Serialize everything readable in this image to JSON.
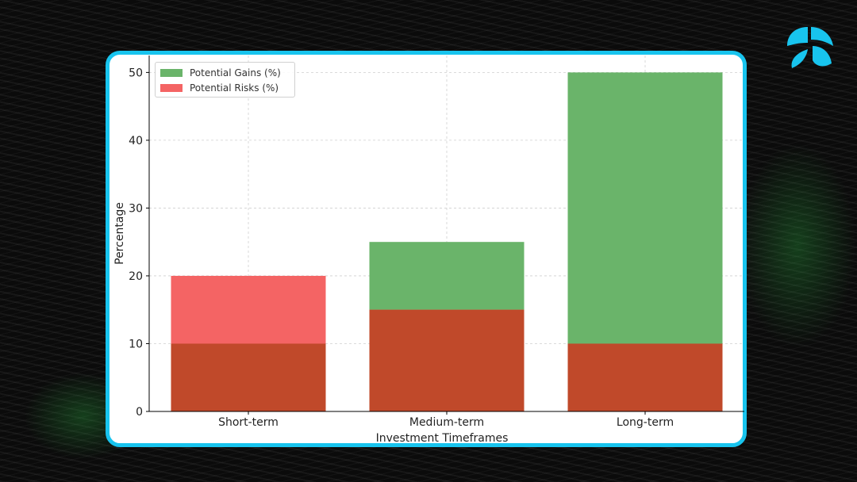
{
  "chart_data": {
    "type": "bar",
    "overlay": true,
    "categories": [
      "Short-term",
      "Medium-term",
      "Long-term"
    ],
    "series": [
      {
        "name": "Potential Gains (%)",
        "values": [
          10,
          25,
          50
        ],
        "color": "#6ab46a"
      },
      {
        "name": "Potential Risks (%)",
        "values": [
          20,
          15,
          10
        ],
        "color": "#f46464"
      }
    ],
    "overlap_color": "#c0492a",
    "xlabel": "Investment Timeframes",
    "ylabel": "Percentage",
    "ylim": [
      0,
      52.5
    ],
    "yticks": [
      0,
      10,
      20,
      30,
      40,
      50
    ],
    "grid": true,
    "legend": "top-left"
  },
  "theme": {
    "card_border": "#18c4ee",
    "logo_color": "#18c4ee"
  },
  "icons": {
    "logo": "brand-logo-icon"
  }
}
